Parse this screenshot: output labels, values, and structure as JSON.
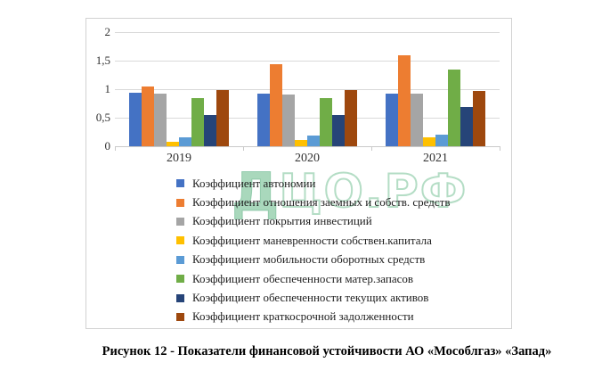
{
  "chart_data": {
    "type": "bar",
    "title": "",
    "xlabel": "",
    "ylabel": "",
    "categories": [
      "2019",
      "2020",
      "2021"
    ],
    "series": [
      {
        "name": "Коэффициент автономии",
        "color": "#4472C4",
        "values": [
          0.94,
          0.92,
          0.93
        ]
      },
      {
        "name": "Коэффициент отношения заемных и собств. средств",
        "color": "#ED7D31",
        "values": [
          1.05,
          1.44,
          1.6
        ]
      },
      {
        "name": "Коэффициент покрытия инвестиций",
        "color": "#A5A5A5",
        "values": [
          0.93,
          0.91,
          0.92
        ]
      },
      {
        "name": "Коэффициент маневренности собствен.капитала",
        "color": "#FFC000",
        "values": [
          0.08,
          0.11,
          0.16
        ]
      },
      {
        "name": "Коэффициент мобильности оборотных средств",
        "color": "#5B9BD5",
        "values": [
          0.16,
          0.19,
          0.2
        ]
      },
      {
        "name": "Коэффициент обеспеченности матер.запасов",
        "color": "#70AD47",
        "values": [
          0.85,
          0.85,
          1.35
        ]
      },
      {
        "name": "Коэффициент обеспеченности текущих активов",
        "color": "#264478",
        "values": [
          0.55,
          0.55,
          0.69
        ]
      },
      {
        "name": "Коэффициент краткосрочной задолженности",
        "color": "#9E480E",
        "values": [
          0.99,
          0.99,
          0.97
        ]
      }
    ],
    "ylim": [
      0,
      2
    ],
    "ytick_step": 0.5,
    "ytick_labels": [
      "0",
      "0,5",
      "1",
      "1,5",
      "2"
    ],
    "grid": true,
    "gridline_color": "#d9d9d9",
    "legend_position": "bottom-inside"
  },
  "watermark": {
    "filled": "Д",
    "outline": "ЦО.РФ"
  },
  "caption": {
    "text": "Рисунок 12 - Показатели финансовой устойчивости АО «Мособлгаз» «Запад»"
  }
}
